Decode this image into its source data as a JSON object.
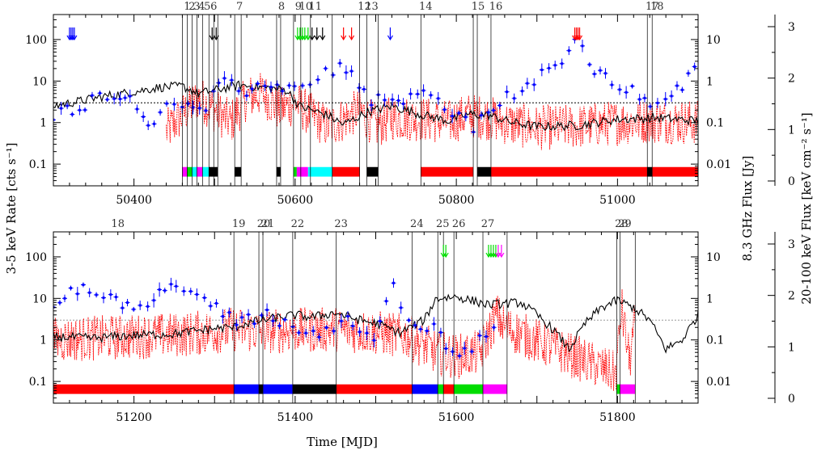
{
  "chart_data": {
    "type": "line",
    "xlabel": "Time [MJD]",
    "ylabel_left": "3-5 keV Rate [cts s⁻¹]",
    "ylabel_right": "8.3 GHz Flux [Jy]",
    "ylabel_far_right": "20-100 keV Flux [keV cm⁻² s⁻¹]",
    "left_scale": "log",
    "left_ticks": [
      "0.1",
      "1",
      "10",
      "100"
    ],
    "right_ticks": [
      "0.01",
      "0.1",
      "1",
      "10"
    ],
    "far_right_ticks": [
      "0",
      "1",
      "2",
      "3"
    ],
    "dotted_level": 3,
    "panels": [
      {
        "xlim": [
          50300,
          51100
        ],
        "ylim": [
          0.03,
          400
        ],
        "x_ticks": [
          50400,
          50600,
          50800,
          51000
        ],
        "state_lines": [
          {
            "x": 50460,
            "label": "1"
          },
          {
            "x": 50466,
            "label": "2"
          },
          {
            "x": 50472,
            "label": "3"
          },
          {
            "x": 50478,
            "label": "4"
          },
          {
            "x": 50485,
            "label": "5"
          },
          {
            "x": 50493,
            "label": "6"
          },
          {
            "x": 50499,
            "label": ""
          },
          {
            "x": 50504,
            "label": ""
          },
          {
            "x": 50525,
            "label": "7"
          },
          {
            "x": 50533,
            "label": ""
          },
          {
            "x": 50577,
            "label": "8"
          },
          {
            "x": 50582,
            "label": ""
          },
          {
            "x": 50598,
            "label": "9"
          },
          {
            "x": 50607,
            "label": "10"
          },
          {
            "x": 50619,
            "label": "11"
          },
          {
            "x": 50646,
            "label": ""
          },
          {
            "x": 50680,
            "label": "12"
          },
          {
            "x": 50689,
            "label": "13"
          },
          {
            "x": 50703,
            "label": ""
          },
          {
            "x": 50756,
            "label": "14"
          },
          {
            "x": 50821,
            "label": "15"
          },
          {
            "x": 50826,
            "label": ""
          },
          {
            "x": 50843,
            "label": "16"
          },
          {
            "x": 51037,
            "label": "17"
          },
          {
            "x": 51043,
            "label": "18"
          }
        ],
        "state_bar": [
          {
            "from": 50460,
            "to": 50466,
            "color": "magenta"
          },
          {
            "from": 50466,
            "to": 50472,
            "color": "green"
          },
          {
            "from": 50472,
            "to": 50478,
            "color": "cyan"
          },
          {
            "from": 50478,
            "to": 50485,
            "color": "magenta"
          },
          {
            "from": 50485,
            "to": 50493,
            "color": "cyan"
          },
          {
            "from": 50493,
            "to": 50504,
            "color": "black"
          },
          {
            "from": 50525,
            "to": 50533,
            "color": "black"
          },
          {
            "from": 50577,
            "to": 50582,
            "color": "black"
          },
          {
            "from": 50598,
            "to": 50602,
            "color": "green"
          },
          {
            "from": 50602,
            "to": 50616,
            "color": "magenta"
          },
          {
            "from": 50616,
            "to": 50646,
            "color": "cyan"
          },
          {
            "from": 50646,
            "to": 50680,
            "color": "red"
          },
          {
            "from": 50689,
            "to": 50703,
            "color": "black"
          },
          {
            "from": 50756,
            "to": 50821,
            "color": "red"
          },
          {
            "from": 50826,
            "to": 50843,
            "color": "black"
          },
          {
            "from": 50843,
            "to": 51037,
            "color": "red"
          },
          {
            "from": 51037,
            "to": 51043,
            "color": "black"
          },
          {
            "from": 51043,
            "to": 51100,
            "color": "red"
          }
        ],
        "arrows": [
          {
            "x": 50320,
            "color": "blue"
          },
          {
            "x": 50322,
            "color": "blue"
          },
          {
            "x": 50324,
            "color": "blue"
          },
          {
            "x": 50326,
            "color": "blue"
          },
          {
            "x": 50497,
            "color": "black"
          },
          {
            "x": 50502,
            "color": "black"
          },
          {
            "x": 50603,
            "color": "green"
          },
          {
            "x": 50606,
            "color": "green"
          },
          {
            "x": 50609,
            "color": "green"
          },
          {
            "x": 50612,
            "color": "green"
          },
          {
            "x": 50616,
            "color": "green"
          },
          {
            "x": 50621,
            "color": "black"
          },
          {
            "x": 50627,
            "color": "black"
          },
          {
            "x": 50634,
            "color": "black"
          },
          {
            "x": 50660,
            "color": "red"
          },
          {
            "x": 50670,
            "color": "red"
          },
          {
            "x": 50718,
            "color": "blue"
          },
          {
            "x": 50947,
            "color": "red"
          },
          {
            "x": 50949,
            "color": "red"
          },
          {
            "x": 50951,
            "color": "red"
          },
          {
            "x": 50953,
            "color": "red"
          }
        ],
        "xray_knots": [
          [
            50300,
            2.5
          ],
          [
            50340,
            3.5
          ],
          [
            50370,
            4.5
          ],
          [
            50400,
            5.5
          ],
          [
            50430,
            7
          ],
          [
            50460,
            7.5
          ],
          [
            50480,
            5
          ],
          [
            50500,
            6
          ],
          [
            50530,
            8
          ],
          [
            50560,
            7
          ],
          [
            50590,
            6
          ],
          [
            50605,
            2.5
          ],
          [
            50640,
            1.5
          ],
          [
            50660,
            0.9
          ],
          [
            50690,
            1.8
          ],
          [
            50720,
            2.5
          ],
          [
            50760,
            1.5
          ],
          [
            50790,
            1.1
          ],
          [
            50815,
            1.6
          ],
          [
            50840,
            1.5
          ],
          [
            50870,
            1.0
          ],
          [
            50900,
            0.8
          ],
          [
            50950,
            0.85
          ],
          [
            51000,
            1.2
          ],
          [
            51050,
            1.3
          ],
          [
            51100,
            1.1
          ]
        ],
        "radio_knots": [
          [
            50440,
            0.6
          ],
          [
            50460,
            1.5
          ],
          [
            50480,
            4
          ],
          [
            50500,
            2
          ],
          [
            50520,
            1
          ],
          [
            50540,
            4
          ],
          [
            50560,
            5
          ],
          [
            50580,
            2
          ],
          [
            50600,
            3
          ],
          [
            50620,
            1.5
          ],
          [
            50640,
            0.8
          ],
          [
            50660,
            1.2
          ],
          [
            50680,
            2
          ],
          [
            50700,
            0.8
          ],
          [
            50720,
            1.3
          ],
          [
            50760,
            1.2
          ],
          [
            50790,
            1
          ],
          [
            50815,
            1.5
          ],
          [
            50840,
            1.3
          ],
          [
            50870,
            0.9
          ],
          [
            50900,
            0.75
          ],
          [
            50950,
            0.8
          ],
          [
            51000,
            1.0
          ],
          [
            51050,
            1.1
          ],
          [
            51100,
            1.0
          ]
        ],
        "hxte_knots": [
          [
            50300,
            1.5
          ],
          [
            50340,
            3
          ],
          [
            50380,
            6
          ],
          [
            50420,
            1
          ],
          [
            50450,
            4
          ],
          [
            50480,
            1.5
          ],
          [
            50510,
            8
          ],
          [
            50540,
            6
          ],
          [
            50570,
            10
          ],
          [
            50590,
            5
          ],
          [
            50620,
            12
          ],
          [
            50660,
            25
          ],
          [
            50690,
            4
          ],
          [
            50720,
            3
          ],
          [
            50750,
            5
          ],
          [
            50780,
            3
          ],
          [
            50820,
            0.8
          ],
          [
            50860,
            4
          ],
          [
            50900,
            10
          ],
          [
            50930,
            30
          ],
          [
            50950,
            90
          ],
          [
            50970,
            20
          ],
          [
            51000,
            8
          ],
          [
            51040,
            3
          ],
          [
            51070,
            5
          ],
          [
            51100,
            20
          ]
        ]
      },
      {
        "xlim": [
          51100,
          51900
        ],
        "ylim": [
          0.03,
          400
        ],
        "x_ticks": [
          51200,
          51400,
          51600,
          51800
        ],
        "state_lines": [
          {
            "x": 51324,
            "label": "19"
          },
          {
            "x": 51355,
            "label": "20"
          },
          {
            "x": 51360,
            "label": "21"
          },
          {
            "x": 51397,
            "label": "22"
          },
          {
            "x": 51451,
            "label": "23"
          },
          {
            "x": 51545,
            "label": "24"
          },
          {
            "x": 51577,
            "label": "25"
          },
          {
            "x": 51584,
            "label": ""
          },
          {
            "x": 51597,
            "label": "26"
          },
          {
            "x": 51633,
            "label": "27"
          },
          {
            "x": 51663,
            "label": ""
          },
          {
            "x": 51799,
            "label": "28"
          },
          {
            "x": 51803,
            "label": "29"
          },
          {
            "x": 51822,
            "label": ""
          }
        ],
        "panel_labels": [
          {
            "x": 51180,
            "label": "18"
          }
        ],
        "state_bar": [
          {
            "from": 51100,
            "to": 51324,
            "color": "red"
          },
          {
            "from": 51324,
            "to": 51355,
            "color": "blue"
          },
          {
            "from": 51355,
            "to": 51360,
            "color": "black"
          },
          {
            "from": 51360,
            "to": 51397,
            "color": "blue"
          },
          {
            "from": 51397,
            "to": 51451,
            "color": "black"
          },
          {
            "from": 51451,
            "to": 51545,
            "color": "red"
          },
          {
            "from": 51545,
            "to": 51577,
            "color": "blue"
          },
          {
            "from": 51577,
            "to": 51584,
            "color": "green"
          },
          {
            "from": 51584,
            "to": 51597,
            "color": "red"
          },
          {
            "from": 51597,
            "to": 51633,
            "color": "green"
          },
          {
            "from": 51633,
            "to": 51663,
            "color": "magenta"
          },
          {
            "from": 51799,
            "to": 51803,
            "color": "green"
          },
          {
            "from": 51803,
            "to": 51822,
            "color": "magenta"
          }
        ],
        "arrows": [
          {
            "x": 51584,
            "color": "green"
          },
          {
            "x": 51587,
            "color": "green"
          },
          {
            "x": 51640,
            "color": "green"
          },
          {
            "x": 51643,
            "color": "green"
          },
          {
            "x": 51646,
            "color": "green"
          },
          {
            "x": 51649,
            "color": "green"
          },
          {
            "x": 51652,
            "color": "magenta"
          },
          {
            "x": 51656,
            "color": "magenta"
          }
        ],
        "xray_knots": [
          [
            51100,
            1.2
          ],
          [
            51150,
            1.1
          ],
          [
            51200,
            1.3
          ],
          [
            51250,
            1.4
          ],
          [
            51300,
            1.9
          ],
          [
            51324,
            2.0
          ],
          [
            51340,
            2.5
          ],
          [
            51360,
            3
          ],
          [
            51380,
            3.5
          ],
          [
            51400,
            4
          ],
          [
            51420,
            3.5
          ],
          [
            51450,
            4.5
          ],
          [
            51480,
            3.0
          ],
          [
            51500,
            2.5
          ],
          [
            51530,
            1.5
          ],
          [
            51560,
            3.0
          ],
          [
            51575,
            10
          ],
          [
            51600,
            11
          ],
          [
            51640,
            7
          ],
          [
            51680,
            8
          ],
          [
            51700,
            4
          ],
          [
            51720,
            1.8
          ],
          [
            51740,
            0.6
          ],
          [
            51760,
            2.5
          ],
          [
            51780,
            6
          ],
          [
            51800,
            9
          ],
          [
            51820,
            6
          ],
          [
            51840,
            3
          ],
          [
            51860,
            0.6
          ],
          [
            51880,
            1.0
          ],
          [
            51900,
            4
          ]
        ],
        "radio_knots": [
          [
            51100,
            1.0
          ],
          [
            51150,
            1.1
          ],
          [
            51200,
            1.2
          ],
          [
            51250,
            1.3
          ],
          [
            51300,
            1.6
          ],
          [
            51324,
            1.8
          ],
          [
            51360,
            1.6
          ],
          [
            51400,
            1.7
          ],
          [
            51450,
            1.8
          ],
          [
            51500,
            1.5
          ],
          [
            51540,
            1.2
          ],
          [
            51575,
            0.5
          ],
          [
            51600,
            0.4
          ],
          [
            51630,
            0.5
          ],
          [
            51650,
            4
          ],
          [
            51660,
            2
          ],
          [
            51798,
            0.15
          ],
          [
            51805,
            6
          ],
          [
            51815,
            0.3
          ],
          [
            51822,
            3
          ]
        ],
        "hxte_knots": [
          [
            51100,
            8
          ],
          [
            51120,
            12
          ],
          [
            51150,
            18
          ],
          [
            51170,
            14
          ],
          [
            51200,
            5
          ],
          [
            51230,
            15
          ],
          [
            51250,
            20
          ],
          [
            51270,
            10
          ],
          [
            51300,
            6
          ],
          [
            51330,
            3
          ],
          [
            51370,
            4
          ],
          [
            51400,
            2
          ],
          [
            51430,
            1.5
          ],
          [
            51460,
            3
          ],
          [
            51500,
            1.0
          ],
          [
            51520,
            20
          ],
          [
            51540,
            3
          ],
          [
            51580,
            1.5
          ],
          [
            51600,
            0.3
          ],
          [
            51630,
            1.0
          ],
          [
            51650,
            3
          ]
        ]
      }
    ]
  }
}
